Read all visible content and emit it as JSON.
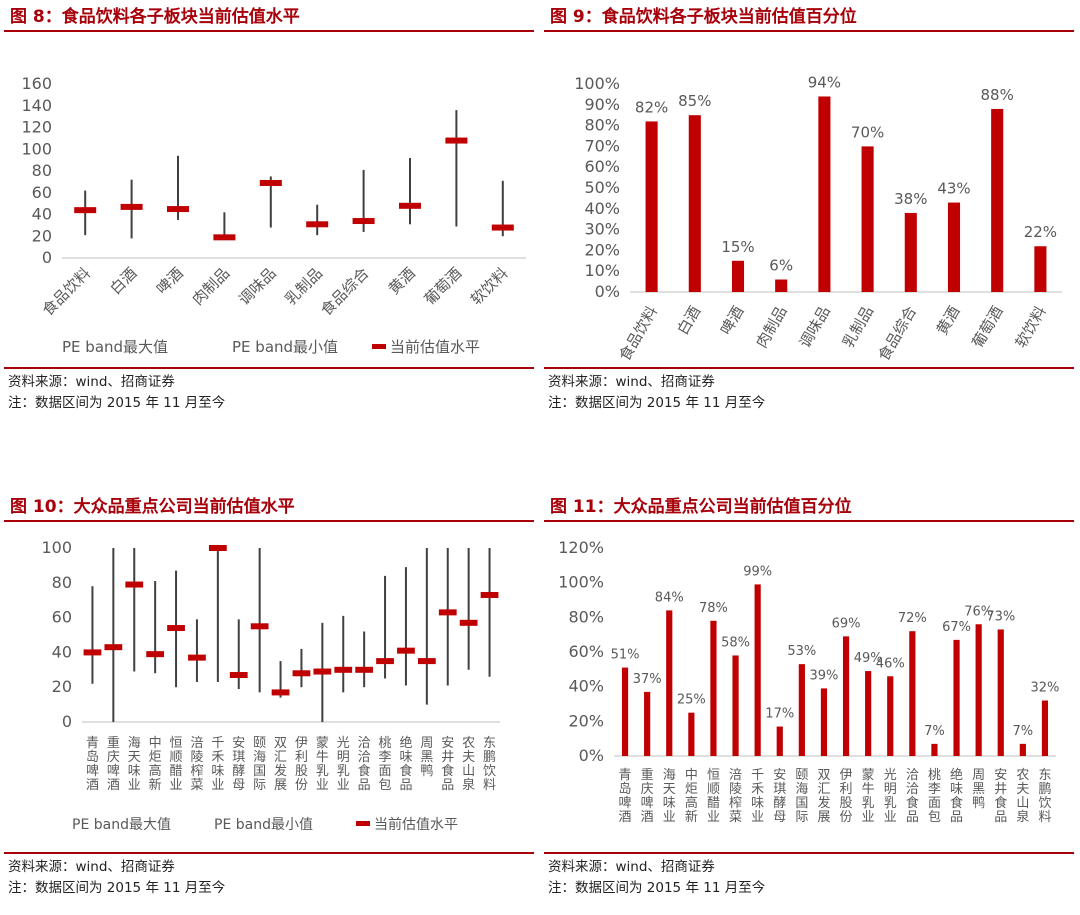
{
  "colors": {
    "accent": "#a8000a",
    "bar": "#c00000",
    "range": "#404040",
    "marker": "#c00000",
    "axis": "#595959",
    "axis_line": "#bfbfbf"
  },
  "panels": [
    {
      "title": "图 8：食品饮料各子板块当前估值水平",
      "source": "资料来源：wind、招商证券",
      "note": "注：数据区间为 2015 年 11 月至今"
    },
    {
      "title": "图 9：食品饮料各子板块当前估值百分位",
      "source": "资料来源：wind、招商证券",
      "note": "注：数据区间为 2015 年 11 月至今"
    },
    {
      "title": "图 10：大众品重点公司当前估值水平",
      "source": "资料来源：wind、招商证券",
      "note": "注：数据区间为 2015 年 11 月至今"
    },
    {
      "title": "图 11：大众品重点公司当前估值百分位",
      "source": "资料来源：wind、招商证券",
      "note": "注：数据区间为 2015 年 11 月至今"
    }
  ],
  "chart_data": [
    {
      "type": "range",
      "title": "图 8：食品饮料各子板块当前估值水平",
      "categories": [
        "食品饮料",
        "白酒",
        "啤酒",
        "肉制品",
        "调味品",
        "乳制品",
        "食品综合",
        "黄酒",
        "葡萄酒",
        "软饮料"
      ],
      "series": [
        {
          "name": "PE band最大值",
          "values": [
            62,
            72,
            94,
            42,
            75,
            49,
            81,
            92,
            136,
            71
          ]
        },
        {
          "name": "PE band最小值",
          "values": [
            21,
            18,
            35,
            17,
            28,
            21,
            24,
            31,
            29,
            20
          ]
        },
        {
          "name": "当前估值水平",
          "values": [
            44,
            47,
            45,
            19,
            69,
            31,
            34,
            48,
            108,
            28
          ]
        }
      ],
      "yticks": [
        "0",
        "20",
        "40",
        "60",
        "80",
        "100",
        "120",
        "140",
        "160"
      ],
      "ylim": [
        0,
        160
      ],
      "legend": [
        "PE band最大值",
        "PE band最小值",
        "当前估值水平"
      ]
    },
    {
      "type": "bar",
      "title": "图 9：食品饮料各子板块当前估值百分位",
      "categories": [
        "食品饮料",
        "白酒",
        "啤酒",
        "肉制品",
        "调味品",
        "乳制品",
        "食品综合",
        "黄酒",
        "葡萄酒",
        "软饮料"
      ],
      "values": [
        82,
        85,
        15,
        6,
        94,
        70,
        38,
        43,
        88,
        22
      ],
      "labels": [
        "82%",
        "85%",
        "15%",
        "6%",
        "94%",
        "70%",
        "38%",
        "43%",
        "88%",
        "22%"
      ],
      "yticks": [
        "0%",
        "10%",
        "20%",
        "30%",
        "40%",
        "50%",
        "60%",
        "70%",
        "80%",
        "90%",
        "100%"
      ],
      "ylim": [
        0,
        100
      ]
    },
    {
      "type": "range",
      "title": "图 10：大众品重点公司当前估值水平",
      "categories": [
        "青岛啤酒",
        "重庆啤酒",
        "海天味业",
        "中炬高新",
        "恒顺醋业",
        "涪陵榨菜",
        "千禾味业",
        "安琪酵母",
        "颐海国际",
        "双汇发展",
        "伊利股份",
        "蒙牛乳业",
        "光明乳业",
        "洽洽食品",
        "桃李面包",
        "绝味食品",
        "周黑鸭",
        "安井食品",
        "农夫山泉",
        "东鹏饮料"
      ],
      "series": [
        {
          "name": "PE band最大值",
          "values": [
            78,
            100,
            100,
            81,
            87,
            59,
            100,
            59,
            100,
            35,
            42,
            57,
            61,
            52,
            84,
            89,
            100,
            100,
            100,
            100
          ]
        },
        {
          "name": "PE band最小值",
          "values": [
            22,
            0,
            29,
            28,
            20,
            23,
            23,
            19,
            17,
            14,
            20,
            0,
            17,
            20,
            25,
            21,
            10,
            21,
            30,
            26
          ]
        },
        {
          "name": "当前估值水平",
          "values": [
            40,
            43,
            79,
            39,
            54,
            37,
            100,
            27,
            55,
            17,
            28,
            29,
            30,
            30,
            35,
            41,
            35,
            63,
            57,
            73
          ]
        }
      ],
      "yticks": [
        "0",
        "20",
        "40",
        "60",
        "80",
        "100"
      ],
      "ylim": [
        0,
        100
      ],
      "legend": [
        "PE band最大值",
        "PE band最小值",
        "当前估值水平"
      ]
    },
    {
      "type": "bar",
      "title": "图 11：大众品重点公司当前估值百分位",
      "categories": [
        "青岛啤酒",
        "重庆啤酒",
        "海天味业",
        "中炬高新",
        "恒顺醋业",
        "涪陵榨菜",
        "千禾味业",
        "安琪酵母",
        "颐海国际",
        "双汇发展",
        "伊利股份",
        "蒙牛乳业",
        "光明乳业",
        "洽洽食品",
        "桃李面包",
        "绝味食品",
        "周黑鸭",
        "安井食品",
        "农夫山泉",
        "东鹏饮料"
      ],
      "values": [
        51,
        37,
        84,
        25,
        78,
        58,
        99,
        17,
        53,
        39,
        69,
        49,
        46,
        72,
        7,
        67,
        76,
        73,
        7,
        32
      ],
      "labels": [
        "51%",
        "37%",
        "84%",
        "25%",
        "78%",
        "58%",
        "99%",
        "17%",
        "53%",
        "39%",
        "69%",
        "49%",
        "46%",
        "72%",
        "7%",
        "67%",
        "76%",
        "73%",
        "7%",
        "32%"
      ],
      "yticks": [
        "0%",
        "20%",
        "40%",
        "60%",
        "80%",
        "100%",
        "120%"
      ],
      "ylim": [
        0,
        120
      ]
    }
  ]
}
